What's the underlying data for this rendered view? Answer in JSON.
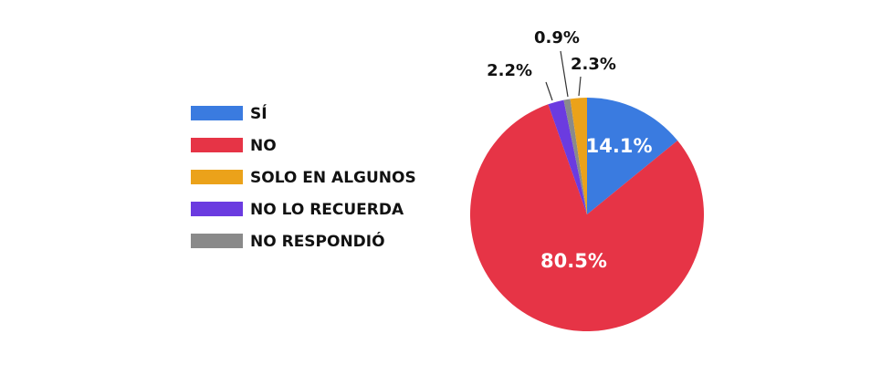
{
  "chart_data": {
    "type": "pie",
    "title": "",
    "legend_position": "left",
    "slices": [
      {
        "label": "SÍ",
        "value": 14.1,
        "display": "14.1%",
        "color": "#3a7be0"
      },
      {
        "label": "NO",
        "value": 80.5,
        "display": "80.5%",
        "color": "#e63446"
      },
      {
        "label": "NO LO RECUERDA",
        "value": 2.2,
        "display": "2.2%",
        "color": "#6b3be0"
      },
      {
        "label": "NO RESPONDIÓ",
        "value": 0.9,
        "display": "0.9%",
        "color": "#8a8a8a"
      },
      {
        "label": "SOLO EN ALGUNOS",
        "value": 2.3,
        "display": "2.3%",
        "color": "#eba21a"
      }
    ],
    "legend_order": [
      "SÍ",
      "NO",
      "SOLO EN ALGUNOS",
      "NO LO RECUERDA",
      "NO RESPONDIÓ"
    ]
  }
}
